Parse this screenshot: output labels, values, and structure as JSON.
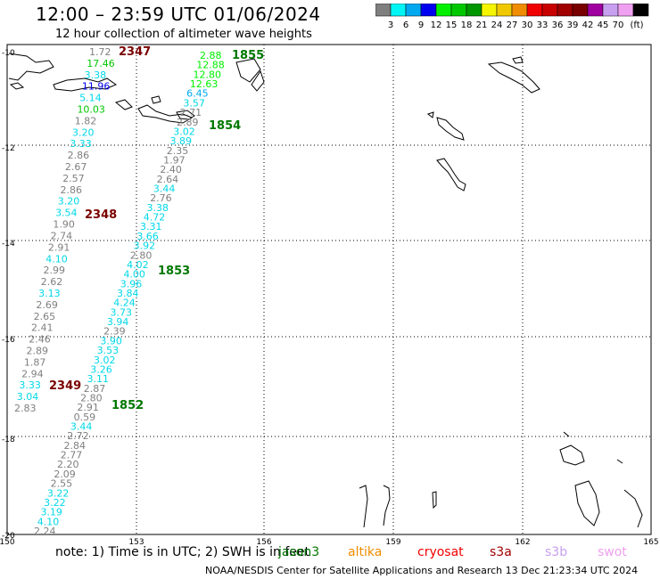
{
  "header": {
    "title": "12:00 – 23:59 UTC 01/06/2024",
    "subtitle": "12 hour collection of altimeter wave heights"
  },
  "colorbar": {
    "colors": [
      "#7f7f7f",
      "#00f5f5",
      "#00a8f0",
      "#0000f0",
      "#00f000",
      "#00c800",
      "#009600",
      "#f5f500",
      "#f0c800",
      "#f08c00",
      "#f00000",
      "#c80000",
      "#a00000",
      "#780000",
      "#a000a0",
      "#c8a0f0",
      "#f0a0f0",
      "#000000"
    ],
    "labels": [
      "3",
      "6",
      "9",
      "12",
      "15",
      "18",
      "21",
      "24",
      "27",
      "30",
      "33",
      "36",
      "39",
      "42",
      "45",
      "70",
      "(ft)"
    ]
  },
  "axes": {
    "lat_labels": [
      "10",
      "12",
      "14",
      "16",
      "18",
      "20"
    ],
    "lon_labels": [
      "150",
      "153",
      "156",
      "159",
      "162",
      "165"
    ]
  },
  "passes": [
    {
      "id": "2347",
      "color": "#7a0000"
    },
    {
      "id": "1855",
      "color": "#007800"
    },
    {
      "id": "1854",
      "color": "#007800"
    },
    {
      "id": "2348",
      "color": "#7a0000"
    },
    {
      "id": "1853",
      "color": "#007800"
    },
    {
      "id": "2349",
      "color": "#7a0000"
    },
    {
      "id": "1852",
      "color": "#007800"
    }
  ],
  "track_A": [
    {
      "v": "1.72",
      "c": "#7f7f7f"
    },
    {
      "v": "17.46",
      "c": "#00c800"
    },
    {
      "v": "3.38",
      "c": "#00d8e8"
    },
    {
      "v": "11.96",
      "c": "#0000f0"
    },
    {
      "v": "5.14",
      "c": "#00d8e8"
    },
    {
      "v": "10.03",
      "c": "#00c800"
    },
    {
      "v": "1.82",
      "c": "#7f7f7f"
    },
    {
      "v": "3.20",
      "c": "#00d8e8"
    },
    {
      "v": "3.33",
      "c": "#00d8e8"
    },
    {
      "v": "2.86",
      "c": "#7f7f7f"
    },
    {
      "v": "2.67",
      "c": "#7f7f7f"
    },
    {
      "v": "2.57",
      "c": "#7f7f7f"
    },
    {
      "v": "2.86",
      "c": "#7f7f7f"
    },
    {
      "v": "3.20",
      "c": "#00d8e8"
    },
    {
      "v": "3.54",
      "c": "#00d8e8"
    },
    {
      "v": "1.90",
      "c": "#7f7f7f"
    },
    {
      "v": "2.74",
      "c": "#7f7f7f"
    },
    {
      "v": "2.91",
      "c": "#7f7f7f"
    },
    {
      "v": "4.10",
      "c": "#00d8e8"
    },
    {
      "v": "2.99",
      "c": "#7f7f7f"
    },
    {
      "v": "2.62",
      "c": "#7f7f7f"
    },
    {
      "v": "3.13",
      "c": "#00d8e8"
    },
    {
      "v": "2.69",
      "c": "#7f7f7f"
    },
    {
      "v": "2.65",
      "c": "#7f7f7f"
    },
    {
      "v": "2.41",
      "c": "#7f7f7f"
    },
    {
      "v": "2.46",
      "c": "#7f7f7f"
    },
    {
      "v": "2.89",
      "c": "#7f7f7f"
    },
    {
      "v": "1.87",
      "c": "#7f7f7f"
    },
    {
      "v": "2.94",
      "c": "#7f7f7f"
    },
    {
      "v": "3.33",
      "c": "#00d8e8"
    },
    {
      "v": "3.04",
      "c": "#00d8e8"
    },
    {
      "v": "2.83",
      "c": "#7f7f7f"
    }
  ],
  "track_B": [
    {
      "v": "2.88",
      "c": "#00f000"
    },
    {
      "v": "12.88",
      "c": "#00f000"
    },
    {
      "v": "12.80",
      "c": "#00f000"
    },
    {
      "v": "12.63",
      "c": "#00f000"
    },
    {
      "v": "6.45",
      "c": "#00a8f0"
    },
    {
      "v": "3.57",
      "c": "#00d8e8"
    },
    {
      "v": "2.71",
      "c": "#7f7f7f"
    },
    {
      "v": "2.89",
      "c": "#7f7f7f"
    },
    {
      "v": "3.02",
      "c": "#00d8e8"
    },
    {
      "v": "3.89",
      "c": "#00d8e8"
    },
    {
      "v": "2.35",
      "c": "#7f7f7f"
    },
    {
      "v": "1.97",
      "c": "#7f7f7f"
    },
    {
      "v": "2.40",
      "c": "#7f7f7f"
    },
    {
      "v": "2.64",
      "c": "#7f7f7f"
    },
    {
      "v": "3.44",
      "c": "#00d8e8"
    },
    {
      "v": "2.76",
      "c": "#7f7f7f"
    },
    {
      "v": "3.38",
      "c": "#00d8e8"
    },
    {
      "v": "4.72",
      "c": "#00d8e8"
    },
    {
      "v": "3.31",
      "c": "#00d8e8"
    },
    {
      "v": "3.66",
      "c": "#00d8e8"
    },
    {
      "v": "3.92",
      "c": "#00d8e8"
    },
    {
      "v": "2.80",
      "c": "#7f7f7f"
    },
    {
      "v": "4.02",
      "c": "#00d8e8"
    },
    {
      "v": "4.00",
      "c": "#00d8e8"
    },
    {
      "v": "3.96",
      "c": "#00d8e8"
    },
    {
      "v": "3.84",
      "c": "#00d8e8"
    },
    {
      "v": "4.24",
      "c": "#00d8e8"
    },
    {
      "v": "3.73",
      "c": "#00d8e8"
    },
    {
      "v": "3.94",
      "c": "#00d8e8"
    },
    {
      "v": "2.39",
      "c": "#7f7f7f"
    },
    {
      "v": "3.90",
      "c": "#00d8e8"
    },
    {
      "v": "3.53",
      "c": "#00d8e8"
    },
    {
      "v": "3.02",
      "c": "#00d8e8"
    },
    {
      "v": "3.26",
      "c": "#00d8e8"
    },
    {
      "v": "3.11",
      "c": "#00d8e8"
    },
    {
      "v": "2.87",
      "c": "#7f7f7f"
    },
    {
      "v": "2.80",
      "c": "#7f7f7f"
    },
    {
      "v": "2.91",
      "c": "#7f7f7f"
    },
    {
      "v": "0.59",
      "c": "#7f7f7f"
    },
    {
      "v": "3.44",
      "c": "#00d8e8"
    },
    {
      "v": "2.72",
      "c": "#7f7f7f"
    },
    {
      "v": "2.84",
      "c": "#7f7f7f"
    },
    {
      "v": "2.77",
      "c": "#7f7f7f"
    },
    {
      "v": "2.20",
      "c": "#7f7f7f"
    },
    {
      "v": "2.09",
      "c": "#7f7f7f"
    },
    {
      "v": "2.55",
      "c": "#7f7f7f"
    },
    {
      "v": "3.22",
      "c": "#00d8e8"
    },
    {
      "v": "3.22",
      "c": "#00d8e8"
    },
    {
      "v": "3.19",
      "c": "#00d8e8"
    },
    {
      "v": "4.10",
      "c": "#00d8e8"
    },
    {
      "v": "2.24",
      "c": "#7f7f7f"
    }
  ],
  "footer": {
    "note": "note: 1) Time is in UTC; 2) SWH is in feet",
    "credit": "NOAA/NESDIS Center for Satellite Applications and Research   13 Dec 21:23:34 UTC 2024",
    "satellites": [
      {
        "name": "jason3",
        "color": "#007800"
      },
      {
        "name": "altika",
        "color": "#f08c00"
      },
      {
        "name": "cryosat",
        "color": "#f00000"
      },
      {
        "name": "s3a",
        "color": "#a00000"
      },
      {
        "name": "s3b",
        "color": "#c8a0f0"
      },
      {
        "name": "swot",
        "color": "#f0a0f0"
      }
    ]
  }
}
